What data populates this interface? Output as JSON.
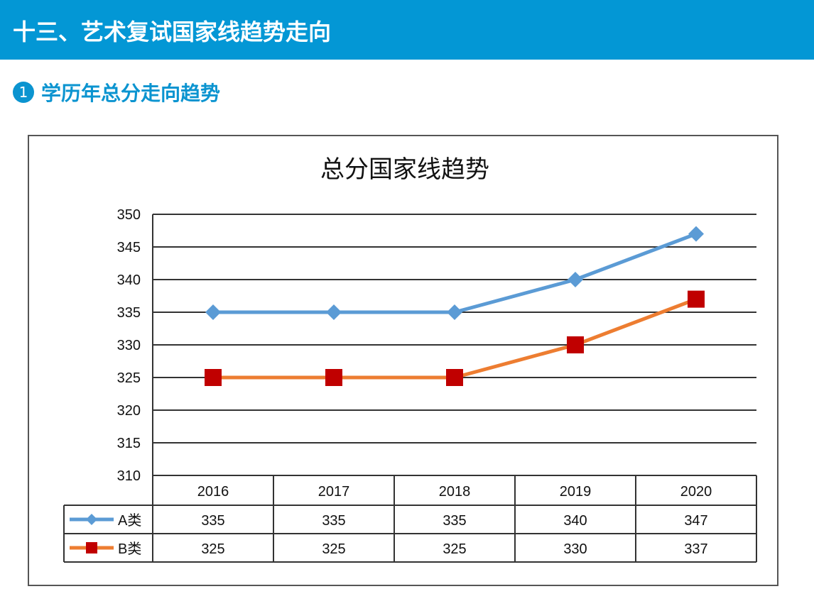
{
  "header": {
    "title": "十三、艺术复试国家线趋势走向"
  },
  "section": {
    "number": "1",
    "title": "学历年总分走向趋势"
  },
  "chart_data": {
    "type": "line",
    "title": "总分国家线趋势",
    "categories": [
      "2016",
      "2017",
      "2018",
      "2019",
      "2020"
    ],
    "ylim": [
      310,
      350
    ],
    "yticks": [
      350,
      345,
      340,
      335,
      330,
      325,
      320,
      315,
      310
    ],
    "grid": true,
    "legend": "data-table",
    "series": [
      {
        "name": "A类",
        "values": [
          335,
          335,
          335,
          340,
          347
        ],
        "color": "#5b9bd5",
        "marker": "diamond"
      },
      {
        "name": "B类",
        "values": [
          325,
          325,
          325,
          330,
          337
        ],
        "color": "#ed7d31",
        "marker_color": "#c00000",
        "marker": "square"
      }
    ]
  }
}
